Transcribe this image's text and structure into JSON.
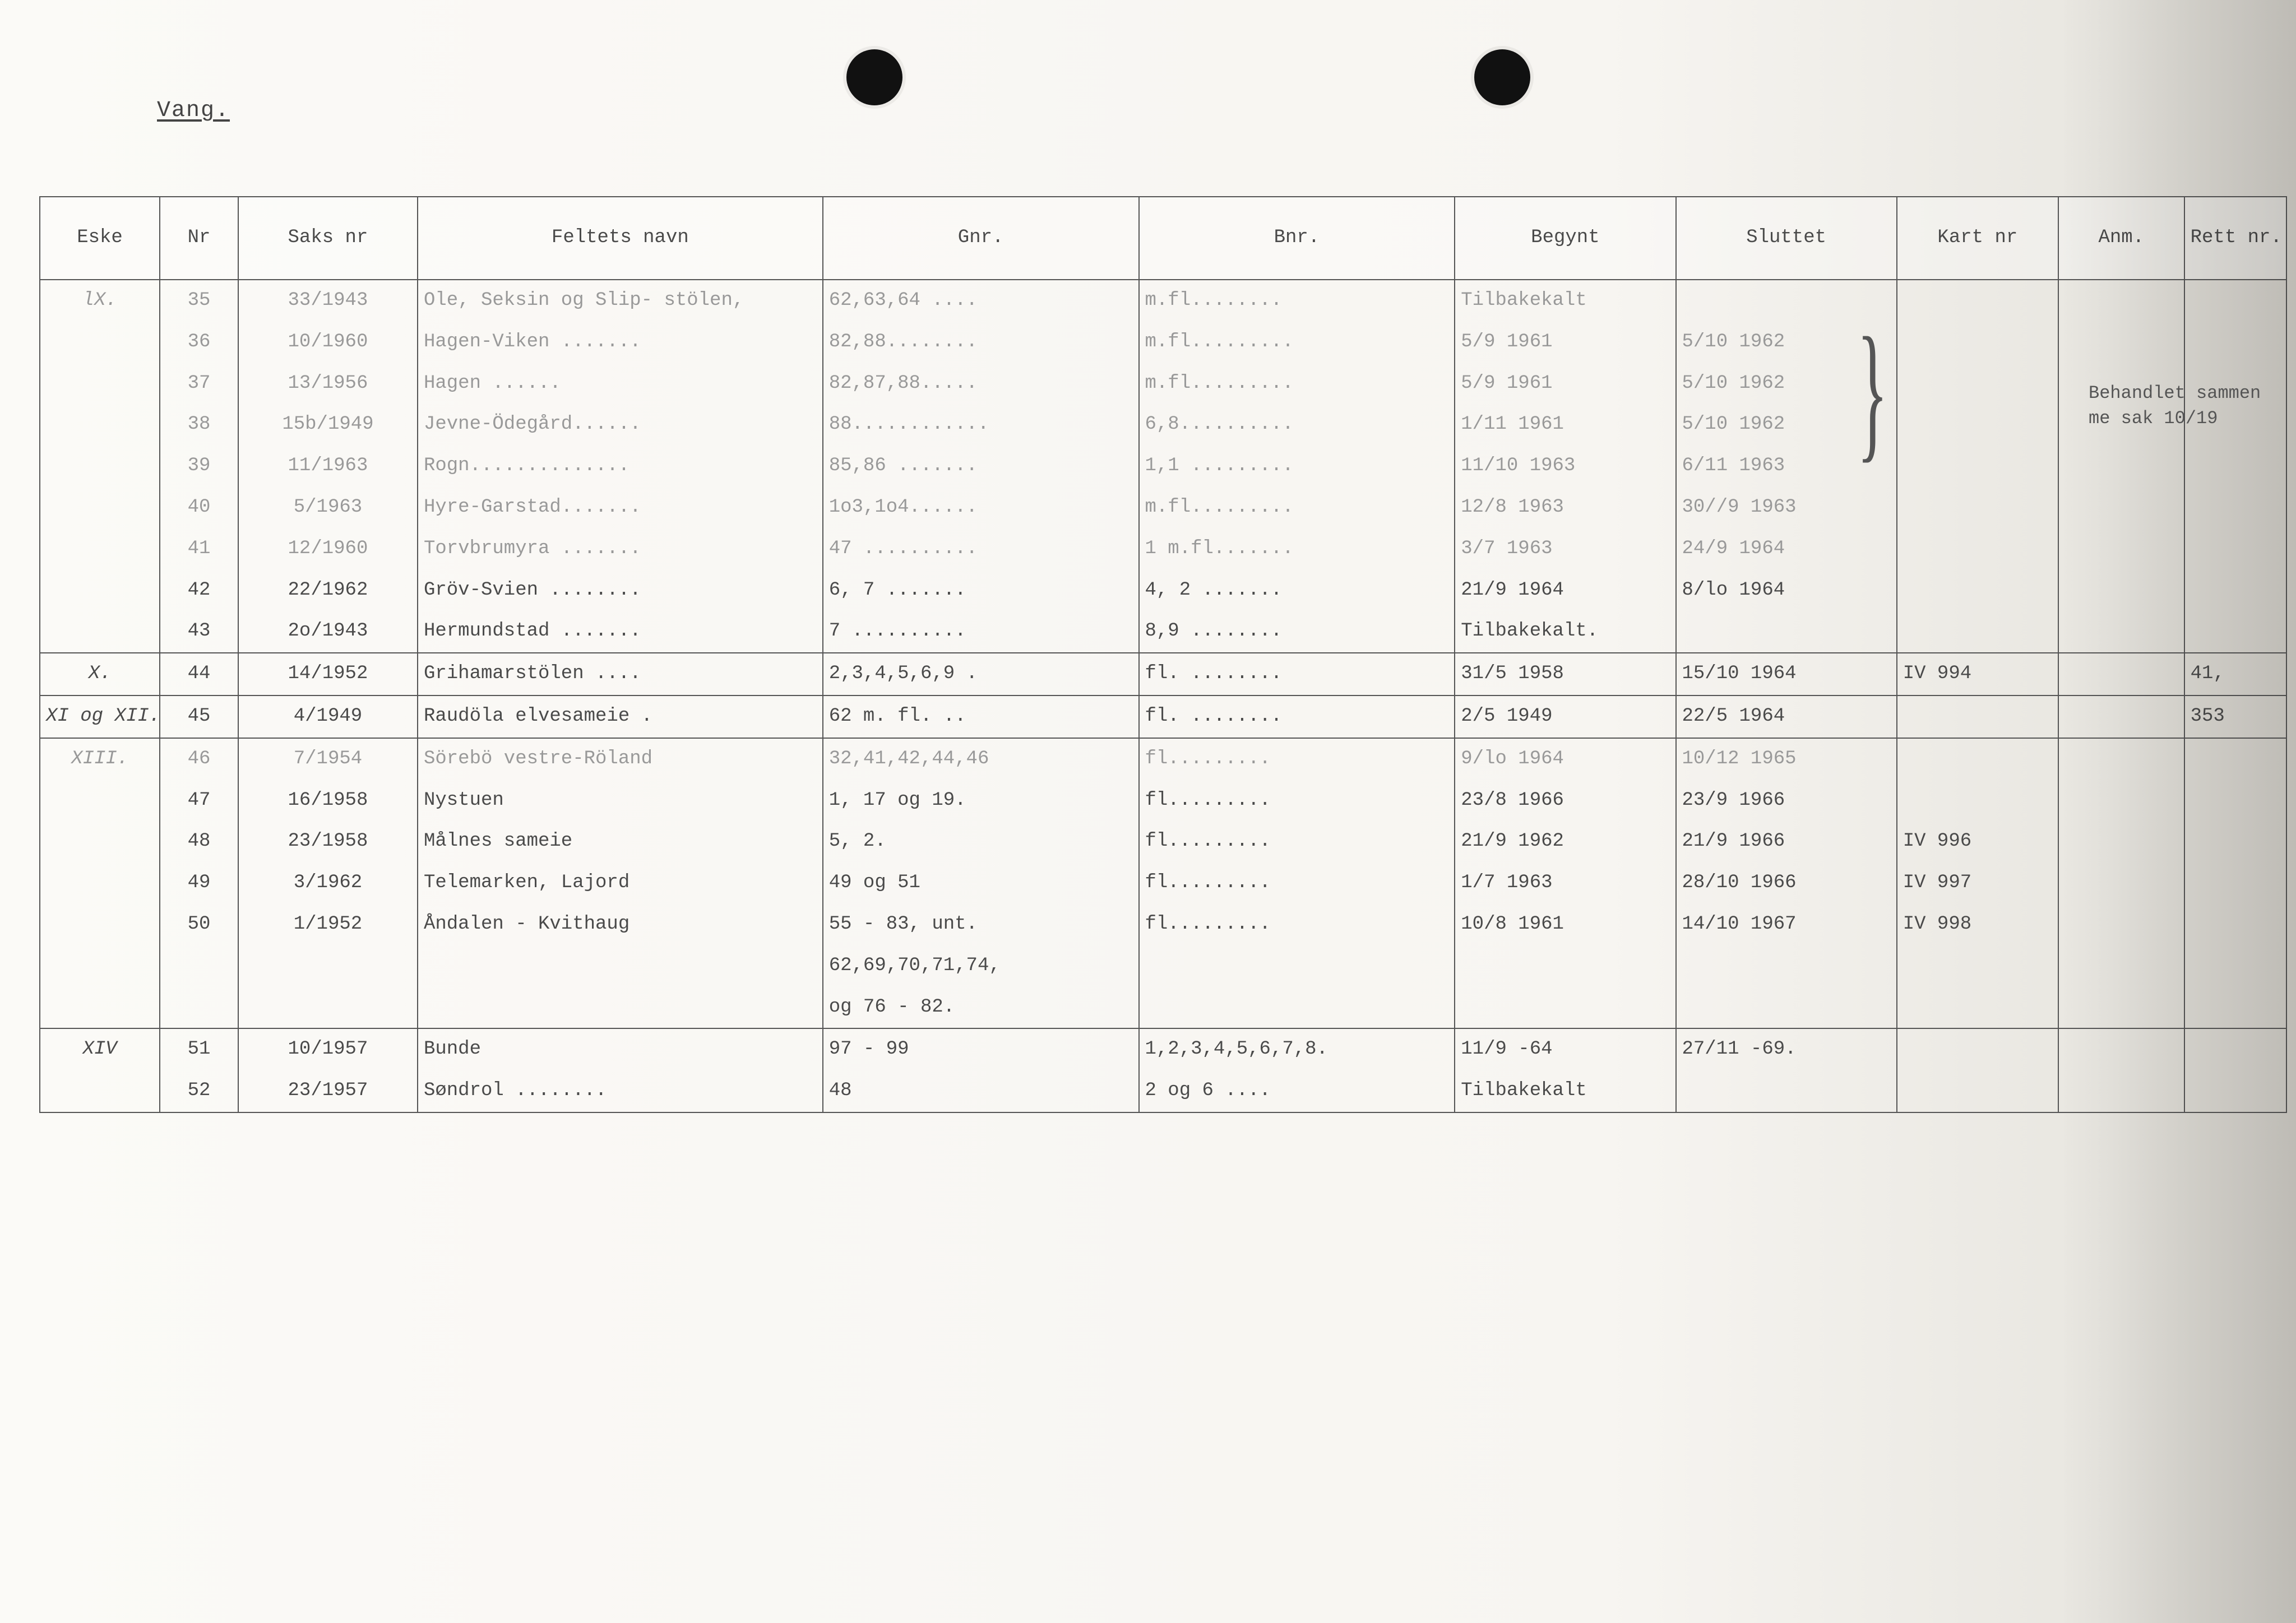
{
  "title": "Vang.",
  "headers": {
    "eske": "Eske",
    "nr": "Nr",
    "saks": "Saks nr",
    "felt": "Feltets navn",
    "gnr": "Gnr.",
    "bnr": "Bnr.",
    "begynt": "Begynt",
    "sluttet": "Sluttet",
    "kart": "Kart nr",
    "anm": "Anm.",
    "rett": "Rett nr."
  },
  "side_note": "Behandlet sammen me sak 10/19",
  "rows": [
    {
      "eske": "lX.",
      "nr": "35",
      "saks": "33/1943",
      "felt": "Ole, Seksin og Slip- stölen,",
      "gnr": "62,63,64 ....",
      "bnr": "m.fl........",
      "begynt": "Tilbakekalt",
      "sluttet": "",
      "kart": "",
      "anm": "",
      "rett": "",
      "faint": true
    },
    {
      "eske": "",
      "nr": "36",
      "saks": "10/1960",
      "felt": "Hagen-Viken .......",
      "gnr": "82,88........",
      "bnr": "m.fl.........",
      "begynt": "5/9 1961",
      "sluttet": "5/10 1962",
      "kart": "",
      "anm": "",
      "rett": "",
      "faint": true
    },
    {
      "eske": "",
      "nr": "37",
      "saks": "13/1956",
      "felt": "Hagen        ......",
      "gnr": "82,87,88.....",
      "bnr": "m.fl.........",
      "begynt": "5/9 1961",
      "sluttet": "5/10 1962",
      "kart": "",
      "anm": "",
      "rett": "",
      "faint": true
    },
    {
      "eske": "",
      "nr": "38",
      "saks": "15b/1949",
      "felt": "Jevne-Ödegård......",
      "gnr": "88............",
      "bnr": "6,8..........",
      "begynt": "1/11 1961",
      "sluttet": "5/10 1962",
      "kart": "",
      "anm": "",
      "rett": "",
      "faint": true
    },
    {
      "eske": "",
      "nr": "39",
      "saks": "11/1963",
      "felt": "Rogn..............",
      "gnr": "85,86 .......",
      "bnr": "1,1 .........",
      "begynt": "11/10 1963",
      "sluttet": "6/11 1963",
      "kart": "",
      "anm": "",
      "rett": "",
      "faint": true
    },
    {
      "eske": "",
      "nr": "40",
      "saks": "5/1963",
      "felt": "Hyre-Garstad.......",
      "gnr": "1o3,1o4......",
      "bnr": "m.fl.........",
      "begynt": "12/8  1963",
      "sluttet": "30//9 1963",
      "kart": "",
      "anm": "",
      "rett": "",
      "faint": true
    },
    {
      "eske": "",
      "nr": "41",
      "saks": "12/1960",
      "felt": "Torvbrumyra .......",
      "gnr": "47 ..........",
      "bnr": "1 m.fl.......",
      "begynt": "3/7   1963",
      "sluttet": "24/9  1964",
      "kart": "",
      "anm": "",
      "rett": "",
      "faint": true
    },
    {
      "eske": "",
      "nr": "42",
      "saks": "22/1962",
      "felt": "Gröv-Svien ........",
      "gnr": "6, 7 .......",
      "bnr": "4, 2 .......",
      "begynt": "21/9  1964",
      "sluttet": "8/lo 1964",
      "kart": "",
      "anm": "",
      "rett": ""
    },
    {
      "eske": "",
      "nr": "43",
      "saks": "2o/1943",
      "felt": "Hermundstad .......",
      "gnr": "7 ..........",
      "bnr": "8,9 ........",
      "begynt": "Tilbakekalt.",
      "sluttet": "",
      "kart": "",
      "anm": "",
      "rett": ""
    },
    {
      "eske": "X.",
      "nr": "44",
      "saks": "14/1952",
      "felt": "Grihamarstölen ....",
      "gnr": "2,3,4,5,6,9 .",
      "bnr": "fl. ........",
      "begynt": "31/5 1958",
      "sluttet": "15/10 1964",
      "kart": "IV 994",
      "anm": "",
      "rett": "41,",
      "sep": true
    },
    {
      "eske": "XI og XII.",
      "nr": "45",
      "saks": "4/1949",
      "felt": "Raudöla elvesameie .",
      "gnr": "62 m. fl. ..",
      "bnr": "fl. ........",
      "begynt": "2/5 1949",
      "sluttet": "22/5 1964",
      "kart": "",
      "anm": "",
      "rett": "353",
      "sep": true
    },
    {
      "eske": "XIII.",
      "nr": "46",
      "saks": "7/1954",
      "felt": "Sörebö vestre-Röland",
      "gnr": "32,41,42,44,46",
      "bnr": "fl.........",
      "begynt": "9/lo 1964",
      "sluttet": "10/12 1965",
      "kart": "",
      "anm": "",
      "rett": "",
      "sep": true,
      "faint": true
    },
    {
      "eske": "",
      "nr": "47",
      "saks": "16/1958",
      "felt": "Nystuen",
      "gnr": "1, 17 og 19.",
      "bnr": "fl.........",
      "begynt": "23/8 1966",
      "sluttet": "23/9 1966",
      "kart": "",
      "anm": "",
      "rett": ""
    },
    {
      "eske": "",
      "nr": "48",
      "saks": "23/1958",
      "felt": "Målnes sameie",
      "gnr": "5, 2.",
      "bnr": "fl.........",
      "begynt": "21/9 1962",
      "sluttet": "21/9 1966",
      "kart": "IV 996",
      "anm": "",
      "rett": ""
    },
    {
      "eske": "",
      "nr": "49",
      "saks": "3/1962",
      "felt": "Telemarken, Lajord",
      "gnr": "49 og 51",
      "bnr": "fl.........",
      "begynt": "1/7  1963",
      "sluttet": "28/10 1966",
      "kart": "IV 997",
      "anm": "",
      "rett": ""
    },
    {
      "eske": "",
      "nr": "50",
      "saks": "1/1952",
      "felt": "Åndalen - Kvithaug",
      "gnr": "55 - 83, unt.",
      "bnr": "fl.........",
      "begynt": "10/8 1961",
      "sluttet": "14/10 1967",
      "kart": "IV 998",
      "anm": "",
      "rett": ""
    },
    {
      "eske": "",
      "nr": "",
      "saks": "",
      "felt": "",
      "gnr": "62,69,70,71,74,",
      "bnr": "",
      "begynt": "",
      "sluttet": "",
      "kart": "",
      "anm": "",
      "rett": ""
    },
    {
      "eske": "",
      "nr": "",
      "saks": "",
      "felt": "",
      "gnr": "og 76 - 82.",
      "bnr": "",
      "begynt": "",
      "sluttet": "",
      "kart": "",
      "anm": "",
      "rett": ""
    },
    {
      "eske": "XIV",
      "nr": "51",
      "saks": "10/1957",
      "felt": "Bunde",
      "gnr": "97 - 99",
      "bnr": "1,2,3,4,5,6,7,8.",
      "begynt": "11/9 -64",
      "sluttet": "27/11 -69.",
      "kart": "",
      "anm": "",
      "rett": "",
      "sep": true
    },
    {
      "eske": "",
      "nr": "52",
      "saks": "23/1957",
      "felt": "Søndrol ........",
      "gnr": "48",
      "bnr": "2 og 6   ....",
      "begynt": "Tilbakekalt",
      "sluttet": "",
      "kart": "",
      "anm": "",
      "rett": ""
    }
  ]
}
